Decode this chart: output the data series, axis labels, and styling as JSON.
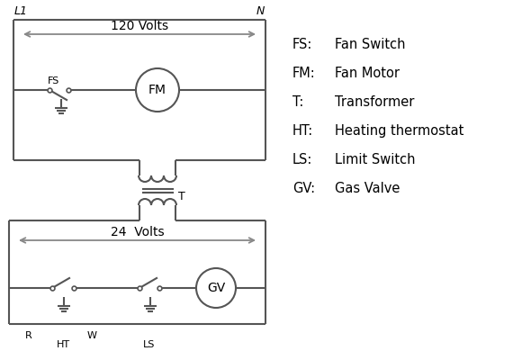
{
  "bg_color": "#ffffff",
  "line_color": "#555555",
  "arrow_color": "#888888",
  "text_color": "#000000",
  "legend": [
    [
      "FS:",
      "Fan Switch"
    ],
    [
      "FM:",
      "Fan Motor"
    ],
    [
      "T:",
      "Transformer"
    ],
    [
      "HT:",
      "Heating thermostat"
    ],
    [
      "LS:",
      "Limit Switch"
    ],
    [
      "GV:",
      "Gas Valve"
    ]
  ],
  "L1_label": "L1",
  "N_label": "N",
  "volts120_label": "120 Volts",
  "volts24_label": "24  Volts",
  "FS_label": "FS",
  "FM_label": "FM",
  "T_label": "T",
  "R_label": "R",
  "W_label": "W",
  "HT_label": "HT",
  "LS_label": "LS",
  "GV_label": "GV"
}
